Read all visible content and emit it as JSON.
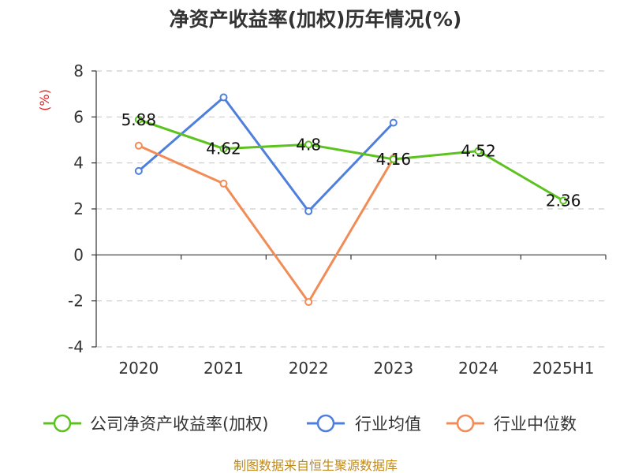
{
  "chart_data": {
    "type": "line",
    "title": "净资产收益率(加权)历年情况(%)",
    "unit_label": "(%)",
    "categories": [
      "2020",
      "2021",
      "2022",
      "2023",
      "2024",
      "2025H1"
    ],
    "ylim": [
      -4,
      8
    ],
    "yticks": [
      "8",
      "6",
      "4",
      "2",
      "0",
      "-2",
      "-4"
    ],
    "grid": true,
    "legend_position": "bottom",
    "series": [
      {
        "name": "公司净资产收益率(加权)",
        "color": "#5cc21e",
        "values": [
          5.88,
          4.62,
          4.8,
          4.16,
          4.52,
          2.36
        ],
        "labels": [
          "5.88",
          "4.62",
          "4.8",
          "4.16",
          "4.52",
          "2.36"
        ]
      },
      {
        "name": "行业均值",
        "color": "#4f7fdc",
        "values": [
          3.65,
          6.85,
          1.9,
          5.75,
          null,
          null
        ]
      },
      {
        "name": "行业中位数",
        "color": "#f28c56",
        "values": [
          4.75,
          3.1,
          -2.05,
          4.2,
          null,
          null
        ]
      }
    ]
  },
  "source_text": "制图数据来自恒生聚源数据库"
}
